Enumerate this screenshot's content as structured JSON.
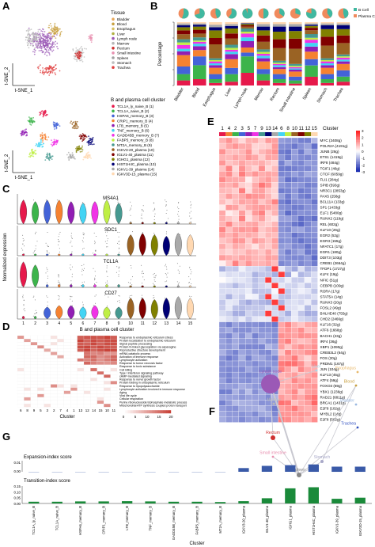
{
  "panels": {
    "A": "A",
    "B": "B",
    "C": "C",
    "D": "D",
    "E": "E",
    "F": "F",
    "G": "G"
  },
  "panelA": {
    "tsne_ylabel": "t-SNE_2",
    "tsne_xlabel": "t-SNE_1",
    "tissue_legend_title": "Tissue",
    "tissue_legend": [
      {
        "label": "Bladder",
        "color": "#e8a85a"
      },
      {
        "label": "Blood",
        "color": "#c8a040"
      },
      {
        "label": "Esophagus",
        "color": "#d8c060"
      },
      {
        "label": "Liver",
        "color": "#b0b040"
      },
      {
        "label": "Lymph node",
        "color": "#9b59b6"
      },
      {
        "label": "Marrow",
        "color": "#b8b8b8"
      },
      {
        "label": "Rectum",
        "color": "#d03030"
      },
      {
        "label": "Small intestine",
        "color": "#e890b0"
      },
      {
        "label": "Spleen",
        "color": "#a0a0a0"
      },
      {
        "label": "Stomach",
        "color": "#c0c0c0"
      },
      {
        "label": "Trachea",
        "color": "#e04040"
      }
    ],
    "cluster_legend_title": "B and plasma cell cluster",
    "cluster_legend": [
      {
        "label": "TCL1A_ly_naive_B (1)",
        "color": "#e6194b"
      },
      {
        "label": "TCL1A_naive_B (2)",
        "color": "#3cb44b"
      },
      {
        "label": "HSPA6_memory_B (3)",
        "color": "#4363d8"
      },
      {
        "label": "CRIP1_memory_B (4)",
        "color": "#f58231"
      },
      {
        "label": "LTB_memory_B (5)",
        "color": "#911eb4"
      },
      {
        "label": "TNF_memory_B (6)",
        "color": "#42d4f4"
      },
      {
        "label": "GADD45B_memory_B (7)",
        "color": "#f032e6"
      },
      {
        "label": "FABP5_memory_B (8)",
        "color": "#bfef45"
      },
      {
        "label": "MT2A_memory_B (9)",
        "color": "#469990"
      },
      {
        "label": "IGKV3-20_plasma (10)",
        "color": "#9a6324"
      },
      {
        "label": "IGLV1-40_plasma (11)",
        "color": "#800000"
      },
      {
        "label": "IGHG1_plasma (12)",
        "color": "#808000"
      },
      {
        "label": "HIST1H4C_plasma (13)",
        "color": "#000075"
      },
      {
        "label": "IGKV1-39_plasma (14)",
        "color": "#a9a9a9"
      },
      {
        "label": "IGKV3D-15_plasma (15)",
        "color": "#ffd8b1"
      }
    ]
  },
  "chart_data": [
    {
      "panel": "B",
      "type": "bar",
      "ylabel": "Percentage",
      "categories": [
        "Bladder",
        "Blood",
        "Esophagus",
        "Liver",
        "Lymph node",
        "Marrow",
        "Rectum",
        "Small intestine",
        "Spleen",
        "Stomach",
        "Trachea"
      ],
      "pie_legend": [
        {
          "label": "B Cell",
          "color": "#3fb8a0"
        },
        {
          "label": "Plasma Cell",
          "color": "#f08a5d"
        }
      ],
      "b_fraction": [
        0.55,
        0.7,
        0.45,
        0.6,
        0.95,
        0.5,
        0.35,
        0.3,
        0.8,
        0.4,
        0.45
      ],
      "stack_colors": [
        "#e6194b",
        "#3cb44b",
        "#4363d8",
        "#f58231",
        "#911eb4",
        "#42d4f4",
        "#f032e6",
        "#bfef45",
        "#469990",
        "#9a6324",
        "#800000",
        "#808000",
        "#000075",
        "#a9a9a9",
        "#ffd8b1"
      ],
      "stacks": [
        [
          8,
          10,
          12,
          18,
          6,
          4,
          6,
          4,
          5,
          8,
          6,
          5,
          3,
          3,
          2
        ],
        [
          10,
          22,
          14,
          10,
          6,
          4,
          3,
          2,
          5,
          6,
          6,
          5,
          3,
          2,
          2
        ],
        [
          4,
          6,
          8,
          10,
          4,
          3,
          3,
          2,
          3,
          22,
          10,
          12,
          5,
          4,
          4
        ],
        [
          6,
          12,
          10,
          14,
          8,
          4,
          3,
          3,
          5,
          10,
          8,
          8,
          4,
          3,
          3
        ],
        [
          20,
          26,
          6,
          8,
          10,
          6,
          6,
          3,
          5,
          3,
          2,
          2,
          1,
          1,
          1
        ],
        [
          8,
          10,
          8,
          12,
          5,
          4,
          3,
          3,
          4,
          12,
          10,
          8,
          6,
          4,
          3
        ],
        [
          4,
          6,
          8,
          8,
          3,
          3,
          2,
          2,
          3,
          20,
          14,
          12,
          8,
          4,
          3
        ],
        [
          3,
          5,
          6,
          8,
          3,
          2,
          2,
          2,
          3,
          24,
          16,
          12,
          7,
          4,
          3
        ],
        [
          14,
          18,
          10,
          12,
          8,
          6,
          5,
          3,
          6,
          6,
          4,
          3,
          2,
          2,
          2
        ],
        [
          4,
          6,
          8,
          10,
          4,
          3,
          3,
          2,
          3,
          20,
          14,
          12,
          6,
          3,
          2
        ],
        [
          6,
          8,
          10,
          10,
          4,
          3,
          3,
          2,
          3,
          18,
          12,
          10,
          6,
          3,
          2
        ]
      ]
    },
    {
      "panel": "C",
      "type": "violin",
      "ylabel": "Normalized expression",
      "xlabel": "B and plasma cell cluster",
      "genes": [
        "MS4A1",
        "SDC1",
        "TCL1A",
        "CD27"
      ],
      "clusters": [
        "1",
        "2",
        "3",
        "4",
        "5",
        "6",
        "7",
        "8",
        "9",
        "10",
        "11",
        "12",
        "13",
        "14",
        "15"
      ],
      "expression": [
        [
          0.8,
          0.75,
          0.8,
          0.8,
          0.75,
          0.7,
          0.75,
          0.8,
          0.7,
          0.05,
          0.05,
          0.05,
          0.05,
          0.05,
          0.05
        ],
        [
          0.02,
          0.02,
          0.02,
          0.02,
          0.02,
          0.02,
          0.02,
          0.02,
          0.02,
          0.7,
          0.75,
          0.7,
          0.65,
          0.75,
          0.7
        ],
        [
          0.85,
          0.75,
          0.1,
          0.1,
          0.1,
          0.1,
          0.1,
          0.1,
          0.1,
          0.05,
          0.05,
          0.05,
          0.05,
          0.05,
          0.05
        ],
        [
          0.1,
          0.1,
          0.4,
          0.45,
          0.45,
          0.4,
          0.45,
          0.4,
          0.4,
          0.7,
          0.7,
          0.65,
          0.7,
          0.75,
          0.7
        ]
      ]
    },
    {
      "panel": "D",
      "type": "heatmap",
      "xlabel": "Cluster",
      "columns": [
        "6",
        "8",
        "9",
        "5",
        "3",
        "2",
        "7",
        "4",
        "1",
        "13",
        "12",
        "14",
        "15",
        "10",
        "11"
      ],
      "terms": [
        "Response to endoplasmic reticulum stress",
        "Protein localization to endoplasmic reticulum",
        "Signal peptide processing",
        "Protein N-linked glycosylation via asparagine",
        "Reproductive structure development",
        "mRNA catabolic process",
        "Activation of immune response",
        "Lymphocyte activation",
        "Response to tumor necrosis factor",
        "Response to toxic substance",
        "Cell killing",
        "Type I interferon signaling pathway",
        "cAMP-mediated signaling",
        "Response to nerve growth factor",
        "Protein folding in endoplasmic reticulum",
        "Response to lipopolysaccharide",
        "Lymphocyte activation involved in immune response",
        "Aging",
        "Viral life cycle",
        "Cellular respiration",
        "Purine ribonucleoside triphosphate metabolic process",
        "Mitochondrial ATP synthesis coupled proton transport"
      ],
      "colorbar_ticks": [
        "0",
        "5",
        "10",
        "15",
        "20"
      ]
    },
    {
      "panel": "E",
      "type": "heatmap",
      "legend_title": "Cluster",
      "columns": [
        "1",
        "4",
        "2",
        "3",
        "5",
        "7",
        "9",
        "13",
        "14",
        "6",
        "8",
        "10",
        "11",
        "12",
        "15"
      ],
      "rows": [
        "MYC (3408g)",
        "POLR2A (4191g)",
        "JUNB (28g)",
        "ETS1 (1419g)",
        "IRF8 (484g)",
        "TGIF1 (46g)",
        "CTCF (6059g)",
        "FLI1 (284g)",
        "SPIB (593g)",
        "NR3C1 (2853g)",
        "PAX5 (258g)",
        "BCL11A (133g)",
        "SP1 (1433g)",
        "ELF1 (5480g)",
        "RUNX2 (119g)",
        "REL (602g)",
        "KLF10 (26g)",
        "EGR2 (52g)",
        "EGR3 (155g)",
        "NFATC1 (17g)",
        "EGR1 (180g)",
        "DDIT3 (103g)",
        "CREB1 (2664g)",
        "TFDP1 (1727g)",
        "KLF4 (19g)",
        "NFIC (51g)",
        "CEBPB (109g)",
        "RORA (17g)",
        "STAT5A (14g)",
        "RUNX3 (20g)",
        "FOSL2 (49g)",
        "BHLHE40 (755g)",
        "CHD2 (2466g)",
        "KLF16 (32g)",
        "ATF6 (1668g)",
        "BACH1 (23g)",
        "IRF4 (36g)",
        "XBP1 (1090g)",
        "CREB3L2 (64g)",
        "FOS (20g)",
        "PRDM1 (167g)",
        "JUN (104g)",
        "KLF13 (45g)",
        "ATF4 (59g)",
        "FOXO3 (69g)",
        "YBX1 (1236g)",
        "RAD21 (6811g)",
        "BRCA1 (1431g)",
        "E2F8 (102g)",
        "MYBL2 (14g)",
        "E2F8 (502g)"
      ],
      "colorbar_ticks": [
        "3",
        "2",
        "1",
        "0",
        "-1",
        "-2",
        "-3"
      ]
    },
    {
      "panel": "F",
      "type": "network",
      "nodes": [
        {
          "label": "Lymph node",
          "color": "#9b59b6"
        },
        {
          "label": "Liver",
          "color": "#a8d8e8"
        },
        {
          "label": "Esophagus",
          "color": "#e8b86a"
        },
        {
          "label": "Blood",
          "color": "#c8a040"
        },
        {
          "label": "Bladder",
          "color": "#9ab8e0"
        },
        {
          "label": "Marrow",
          "color": "#b8b8b8"
        },
        {
          "label": "Rectum",
          "color": "#d03030"
        },
        {
          "label": "Trachea",
          "color": "#3050c0"
        },
        {
          "label": "Small intestine",
          "color": "#e890b0"
        },
        {
          "label": "Stomach",
          "color": "#a8a8c8"
        },
        {
          "label": "Spleen",
          "color": "#888888"
        }
      ]
    },
    {
      "panel": "G",
      "type": "bar",
      "xlabel": "Cluster",
      "series": [
        {
          "name": "Expansion-index score",
          "values": [
            0,
            0,
            0,
            0,
            0,
            0,
            0,
            0,
            0,
            0.005,
            0.008,
            0.009,
            0.01,
            0.007,
            0.007
          ]
        },
        {
          "name": "Transition-index score",
          "values": [
            0.015,
            0.015,
            0.018,
            0.018,
            0.02,
            0.018,
            0.015,
            0.015,
            0.012,
            0.02,
            0.045,
            0.13,
            0.14,
            0.04,
            0.05
          ]
        }
      ],
      "categories": [
        "TCL1A_ly_naive_B",
        "TCL1A_naive_B",
        "HSPA6_memory_B",
        "CRIP1_memory_B",
        "LTB_memory_B",
        "TNF_memory_B",
        "GADD45B_memory_B",
        "FABP5_memory_B",
        "MT2A_memory_B",
        "IGKV3-20_plasma",
        "IGLV1-40_plasma",
        "IGHG1_plasma",
        "HIST1H4C_plasma",
        "IGKV1-39_plasma",
        "IGKV3D-15_plasma"
      ],
      "top_ticks": [
        "0.01",
        "0.00"
      ],
      "bottom_ticks": [
        "0.15",
        "0.10",
        "0.05",
        "0.00"
      ]
    }
  ]
}
